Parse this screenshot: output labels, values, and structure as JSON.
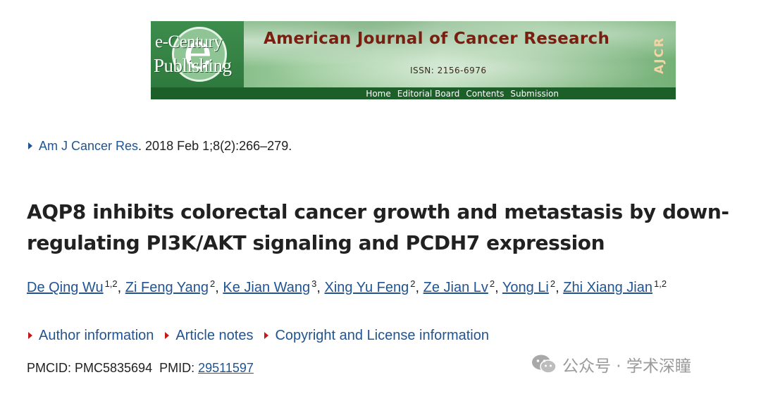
{
  "banner": {
    "logo_line1": "e-Century",
    "logo_line2": "Publishing",
    "logo_letter": "e",
    "journal_title": "American Journal of Cancer Research",
    "issn": "ISSN: 2156-6976",
    "abbrev": "AJCR",
    "nav": [
      "Home",
      "Editorial Board",
      "Contents",
      "Submission"
    ]
  },
  "citation": {
    "journal_link": "Am J Cancer Res",
    "rest": ". 2018 Feb 1;8(2):266–279."
  },
  "article": {
    "title": "AQP8 inhibits colorectal cancer growth and metastasis by down-regulating PI3K/AKT signaling and PCDH7 expression"
  },
  "authors": [
    {
      "name": "De Qing Wu",
      "aff": "1,2"
    },
    {
      "name": "Zi Feng Yang",
      "aff": "2"
    },
    {
      "name": "Ke Jian Wang",
      "aff": "3"
    },
    {
      "name": "Xing Yu Feng",
      "aff": "2"
    },
    {
      "name": "Ze Jian Lv",
      "aff": "2"
    },
    {
      "name": "Yong Li",
      "aff": "2"
    },
    {
      "name": "Zhi Xiang Jian",
      "aff": "1,2"
    }
  ],
  "info_links": {
    "author_info": "Author information",
    "article_notes": "Article notes",
    "copyright": "Copyright and License information"
  },
  "ids": {
    "pmcid_label": "PMCID: PMC5835694",
    "pmid_label": "PMID: ",
    "pmid_value": "29511597"
  },
  "watermark": {
    "text": "公众号 · 学术深瞳",
    "icon": "wechat-icon"
  },
  "colors": {
    "link": "#205493",
    "triangle_red": "#c01a1a",
    "banner_dark_green": "#1c5f28",
    "journal_title": "#7a1f10"
  }
}
